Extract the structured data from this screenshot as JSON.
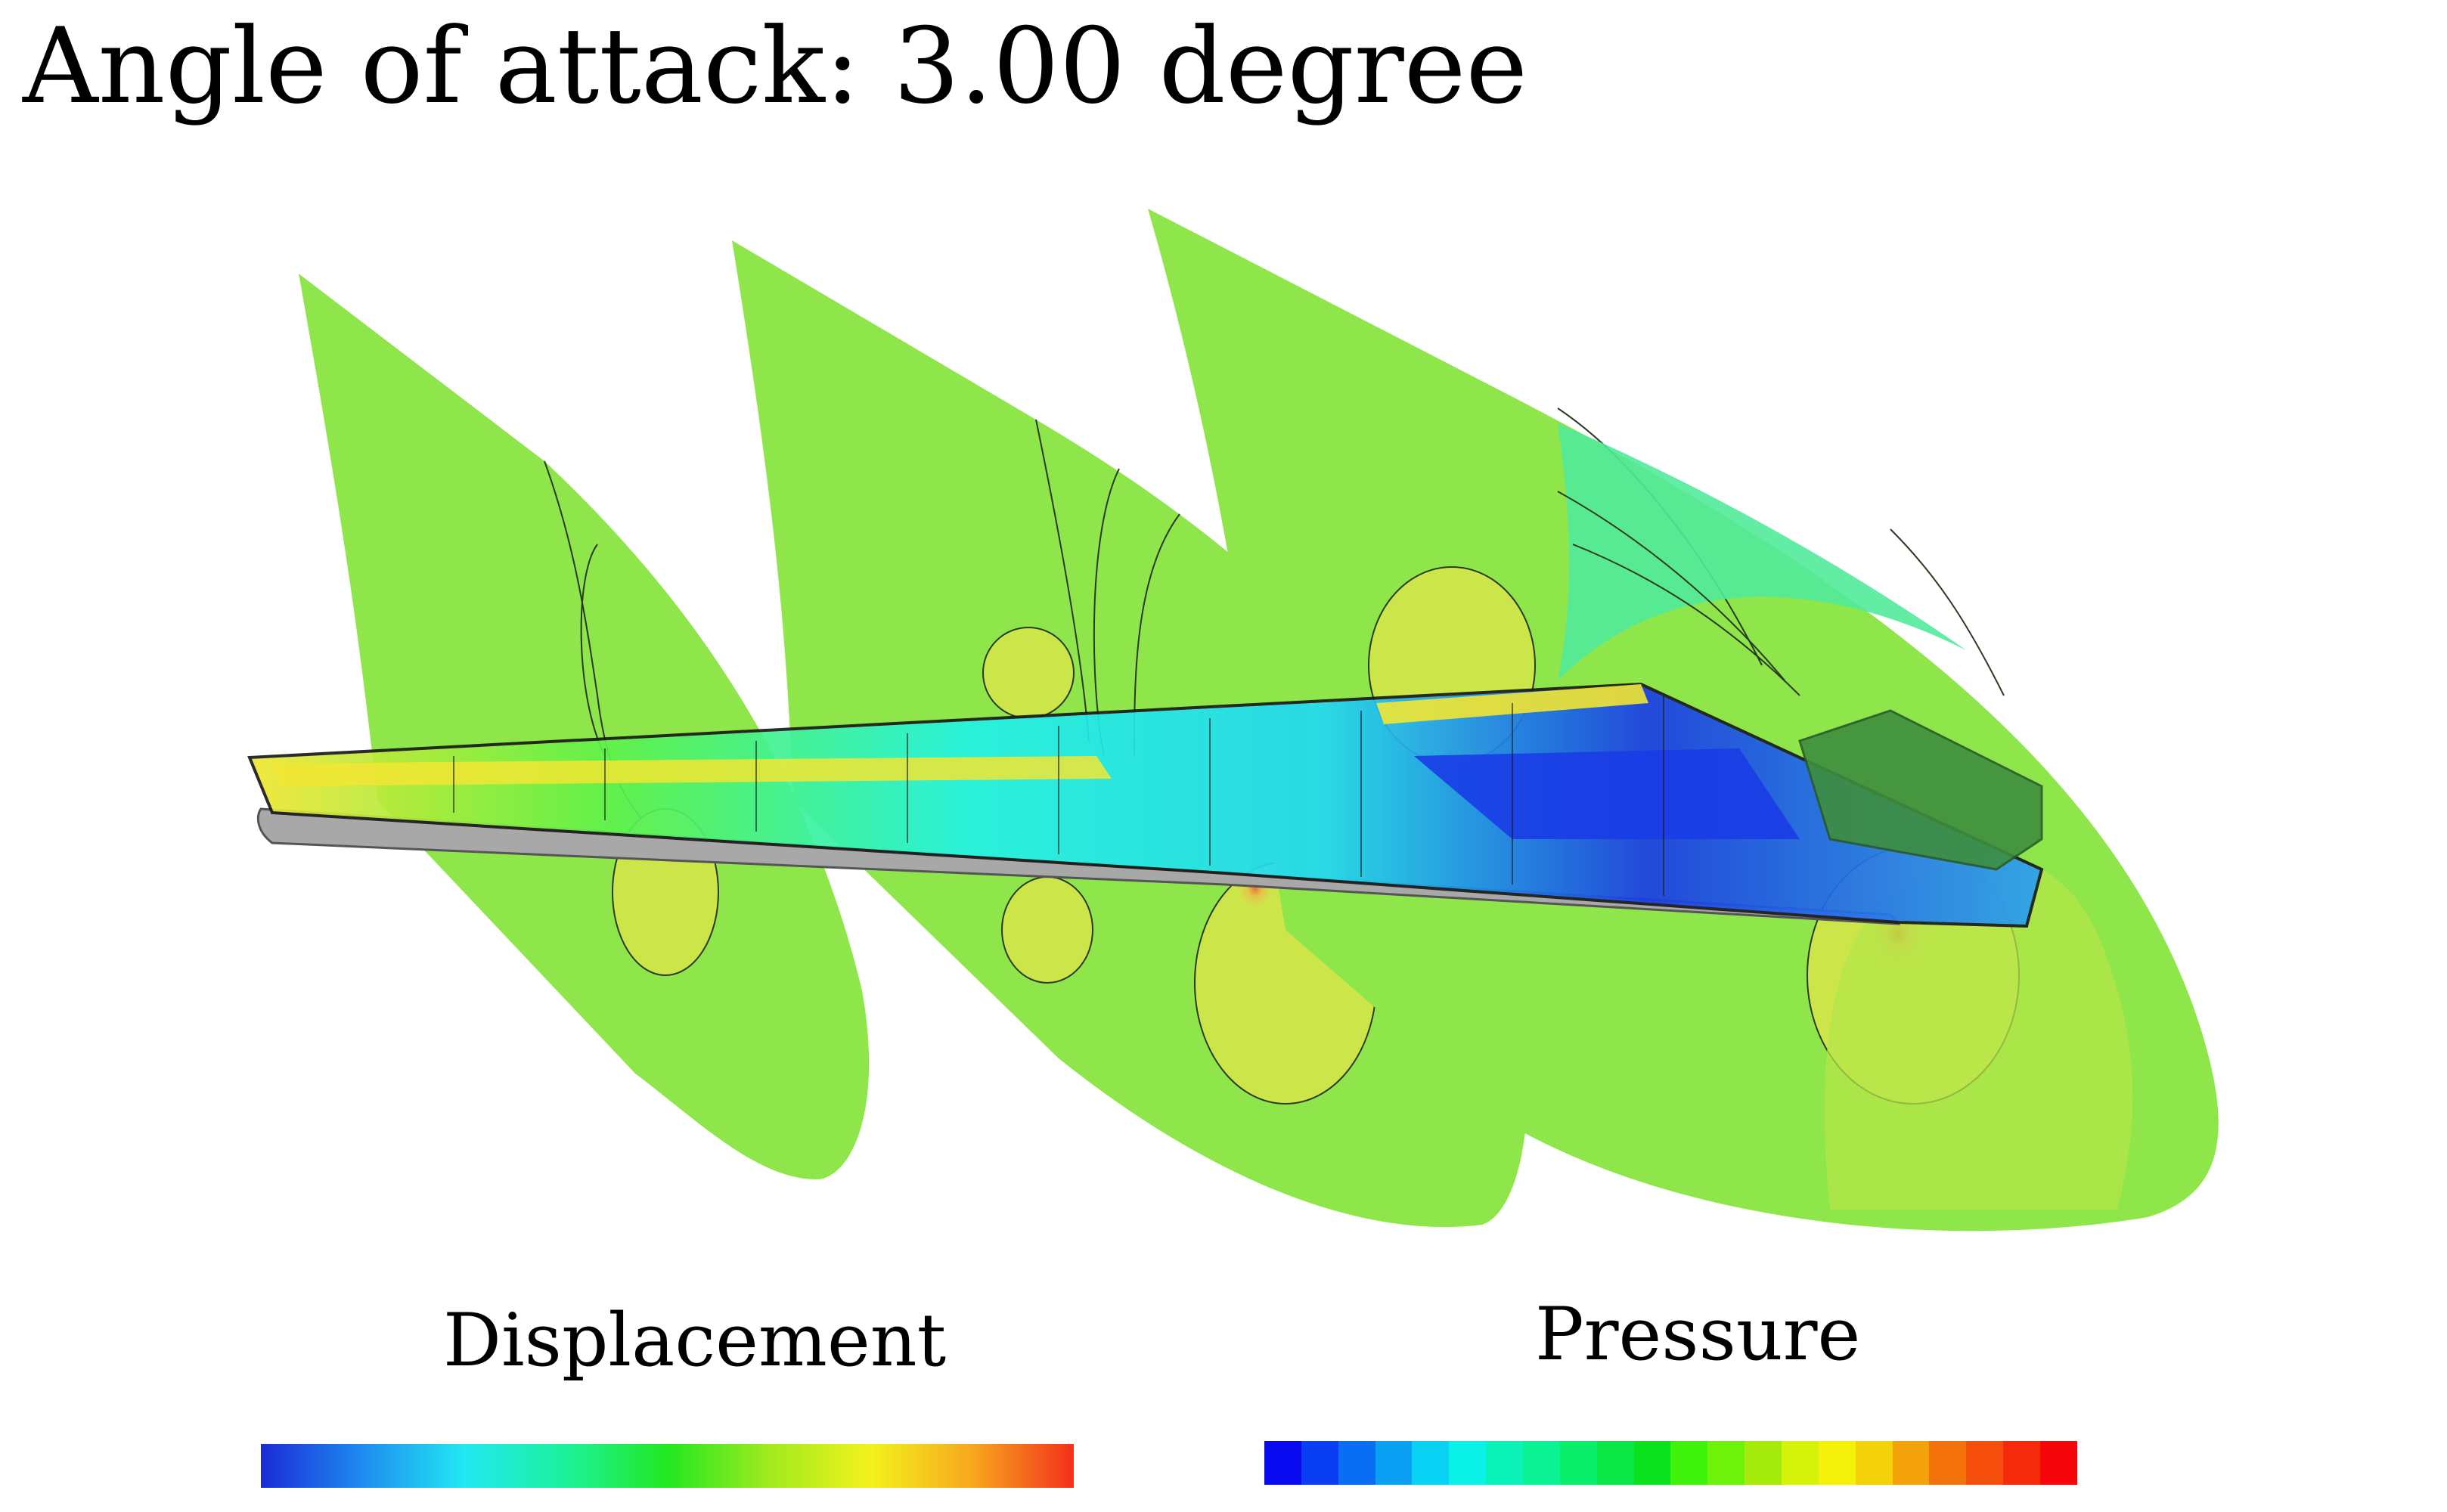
{
  "title": "Angle of attack: 3.00 degree",
  "colorbars": {
    "displacement": {
      "label": "Displacement",
      "gradient": [
        "#1a2bd6",
        "#1e8cf0",
        "#22e8f2",
        "#1cf29a",
        "#22e822",
        "#a0ea1e",
        "#f2f21c",
        "#f6a81e",
        "#f4301a"
      ]
    },
    "pressure": {
      "label": "Pressure",
      "bins": [
        "#0a0af0",
        "#0a3ef2",
        "#0a6ef4",
        "#0aa0f4",
        "#0ad2f4",
        "#0af2e8",
        "#0af2b8",
        "#0af294",
        "#0aee6c",
        "#0ae646",
        "#0ae21e",
        "#3ef20a",
        "#6ef20a",
        "#a4ea0a",
        "#d4f20a",
        "#f4f20a",
        "#f4d20a",
        "#f4a20a",
        "#f4720a",
        "#f44e0a",
        "#f42a0a",
        "#f4060a"
      ]
    }
  },
  "colors": {
    "plane_green": "#8ee64a",
    "wing_cyan": "#22f2f2",
    "wing_blue": "#1a3ce6",
    "body_gray": "#a8a8a8",
    "pod_green": "#3e8e3e"
  }
}
